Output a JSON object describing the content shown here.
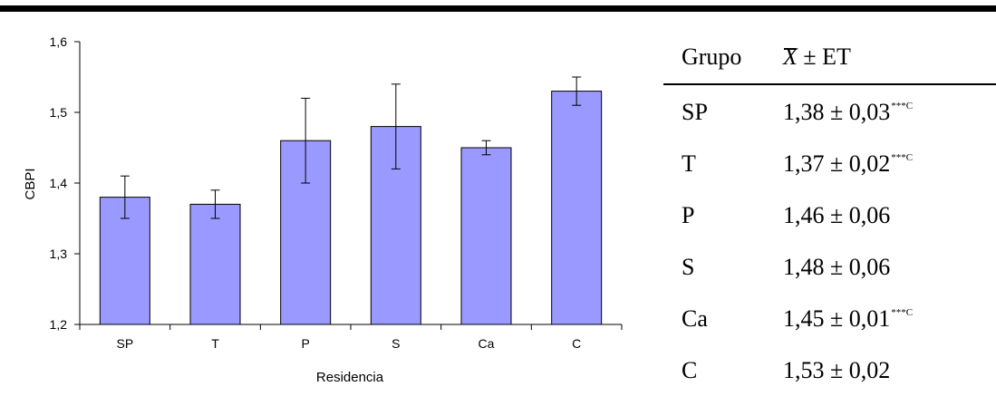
{
  "chart_data": {
    "type": "bar",
    "title": "",
    "xlabel": "Residencia",
    "ylabel": "CBPI",
    "categories": [
      "SP",
      "T",
      "P",
      "S",
      "Ca",
      "C"
    ],
    "values": [
      1.38,
      1.37,
      1.46,
      1.48,
      1.45,
      1.53
    ],
    "errors": [
      0.03,
      0.02,
      0.06,
      0.06,
      0.01,
      0.02
    ],
    "ylim": [
      1.2,
      1.6
    ],
    "yticks": [
      1.2,
      1.3,
      1.4,
      1.5,
      1.6
    ],
    "ytick_labels": [
      "1,2",
      "1,3",
      "1,4",
      "1,5",
      "1,6"
    ],
    "bar_color": "#9999ff",
    "grid": false,
    "legend": "none"
  },
  "table": {
    "header": {
      "group": "Grupo",
      "mean_symbol": "X",
      "mean_suffix": " ± ET"
    },
    "rows": [
      {
        "group": "SP",
        "value": "1,38 ± 0,03",
        "sig": "***C"
      },
      {
        "group": "T",
        "value": "1,37 ± 0,02",
        "sig": "***C"
      },
      {
        "group": "P",
        "value": "1,46 ± 0,06",
        "sig": ""
      },
      {
        "group": "S",
        "value": "1,48 ± 0,06",
        "sig": ""
      },
      {
        "group": "Ca",
        "value": "1,45 ± 0,01",
        "sig": "***C"
      },
      {
        "group": "C",
        "value": "1,53 ± 0,02",
        "sig": ""
      }
    ]
  }
}
